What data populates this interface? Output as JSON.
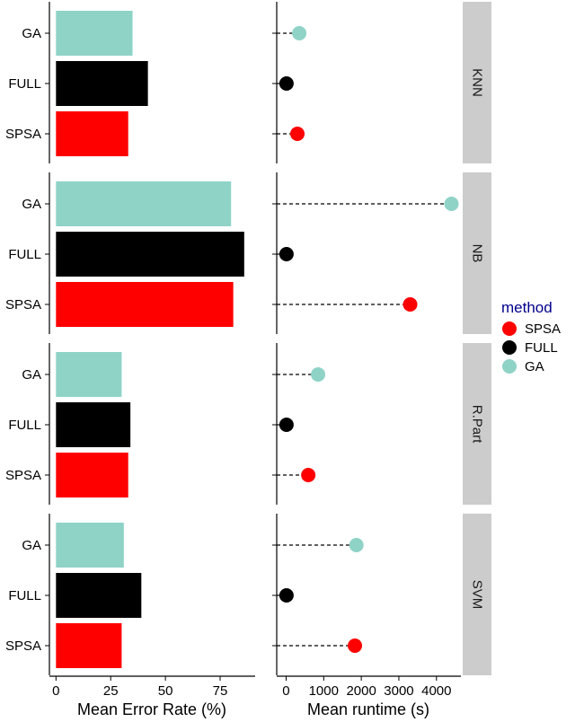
{
  "chart_data": {
    "type": "bar",
    "panels": [
      "KNN",
      "NB",
      "R.Part",
      "SVM"
    ],
    "categories": [
      "GA",
      "FULL",
      "SPSA"
    ],
    "error_rate": {
      "xlabel": "Mean Error Rate (%)",
      "xlim": [
        -3,
        91
      ],
      "ticks": [
        0,
        25,
        50,
        75
      ],
      "values": {
        "KNN": {
          "GA": 35,
          "FULL": 42,
          "SPSA": 33
        },
        "NB": {
          "GA": 80,
          "FULL": 86,
          "SPSA": 81
        },
        "R.Part": {
          "GA": 30,
          "FULL": 34,
          "SPSA": 33
        },
        "SVM": {
          "GA": 31,
          "FULL": 39,
          "SPSA": 30
        }
      }
    },
    "runtime": {
      "type": "dot",
      "xlabel": "Mean runtime (s)",
      "xlim": [
        -250,
        4650
      ],
      "ticks": [
        0,
        1000,
        2000,
        3000,
        4000
      ],
      "values": {
        "KNN": {
          "GA": 350,
          "FULL": 10,
          "SPSA": 300
        },
        "NB": {
          "GA": 4400,
          "FULL": 10,
          "SPSA": 3300
        },
        "R.Part": {
          "GA": 850,
          "FULL": 10,
          "SPSA": 590
        },
        "SVM": {
          "GA": 1870,
          "FULL": 10,
          "SPSA": 1830
        }
      }
    },
    "legend": {
      "title": "method",
      "position": "right",
      "entries": [
        "SPSA",
        "FULL",
        "GA"
      ]
    },
    "colors": {
      "SPSA": "#ff0000",
      "FULL": "#000000",
      "GA": "#8fd3c7"
    },
    "grid": false
  }
}
